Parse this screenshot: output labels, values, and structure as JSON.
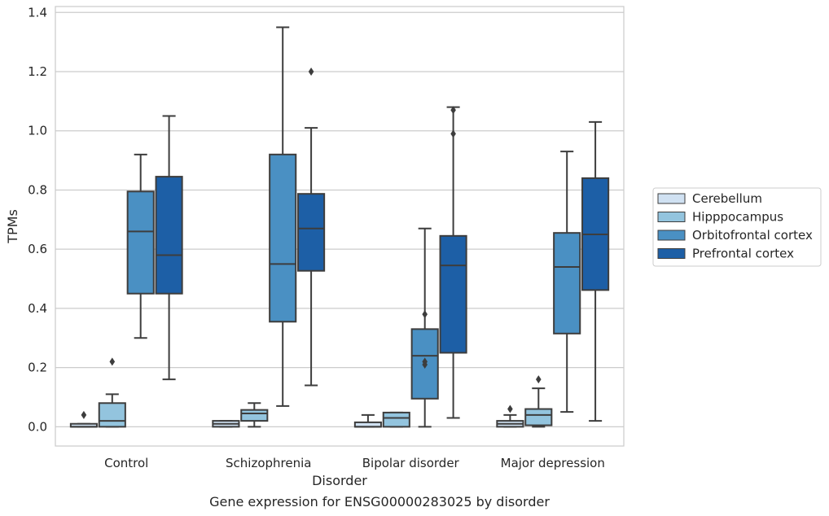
{
  "chart_data": {
    "type": "box",
    "title": "",
    "caption": "Gene expression for ENSG00000283025 by disorder",
    "xlabel": "Disorder",
    "ylabel": "TPMs",
    "ylim": [
      -0.065,
      1.42
    ],
    "yticks": [
      0.0,
      0.2,
      0.4,
      0.6,
      0.8,
      1.0,
      1.2,
      1.4
    ],
    "ytick_labels": [
      "0.0",
      "0.2",
      "0.4",
      "0.6",
      "0.8",
      "1.0",
      "1.2",
      "1.4"
    ],
    "grid": "horizontal",
    "legend_position": "right",
    "categories": [
      "Control",
      "Schizophrenia",
      "Bipolar disorder",
      "Major depression"
    ],
    "series": [
      {
        "name": "Cerebellum",
        "color": "#d0e1f2",
        "boxes": [
          {
            "whislo": 0.0,
            "q1": 0.0,
            "med": 0.0,
            "q3": 0.01,
            "whishi": 0.01,
            "fliers": [
              0.04
            ]
          },
          {
            "whislo": 0.0,
            "q1": 0.0,
            "med": 0.01,
            "q3": 0.02,
            "whishi": 0.02,
            "fliers": []
          },
          {
            "whislo": 0.0,
            "q1": 0.0,
            "med": 0.0,
            "q3": 0.015,
            "whishi": 0.04,
            "fliers": []
          },
          {
            "whislo": 0.0,
            "q1": 0.0,
            "med": 0.01,
            "q3": 0.02,
            "whishi": 0.04,
            "fliers": [
              0.06
            ]
          }
        ]
      },
      {
        "name": "Hipppocampus",
        "color": "#93c4de",
        "boxes": [
          {
            "whislo": 0.0,
            "q1": 0.0,
            "med": 0.02,
            "q3": 0.08,
            "whishi": 0.11,
            "fliers": [
              0.22
            ]
          },
          {
            "whislo": 0.0,
            "q1": 0.02,
            "med": 0.045,
            "q3": 0.057,
            "whishi": 0.08,
            "fliers": []
          },
          {
            "whislo": 0.0,
            "q1": 0.0,
            "med": 0.03,
            "q3": 0.048,
            "whishi": 0.048,
            "fliers": []
          },
          {
            "whislo": 0.0,
            "q1": 0.005,
            "med": 0.04,
            "q3": 0.06,
            "whishi": 0.13,
            "fliers": [
              0.16
            ]
          }
        ]
      },
      {
        "name": "Orbitofrontal cortex",
        "color": "#4a90c3",
        "boxes": [
          {
            "whislo": 0.3,
            "q1": 0.45,
            "med": 0.66,
            "q3": 0.795,
            "whishi": 0.92,
            "fliers": []
          },
          {
            "whislo": 0.07,
            "q1": 0.355,
            "med": 0.55,
            "q3": 0.92,
            "whishi": 1.35,
            "fliers": []
          },
          {
            "whislo": 0.0,
            "q1": 0.095,
            "med": 0.24,
            "q3": 0.33,
            "whishi": 0.67,
            "fliers": [
              0.21,
              0.22,
              0.38
            ]
          },
          {
            "whislo": 0.05,
            "q1": 0.315,
            "med": 0.54,
            "q3": 0.655,
            "whishi": 0.93,
            "fliers": []
          }
        ]
      },
      {
        "name": "Prefrontal cortex",
        "color": "#1d5fa6",
        "boxes": [
          {
            "whislo": 0.16,
            "q1": 0.45,
            "med": 0.58,
            "q3": 0.845,
            "whishi": 1.05,
            "fliers": []
          },
          {
            "whislo": 0.14,
            "q1": 0.527,
            "med": 0.67,
            "q3": 0.787,
            "whishi": 1.01,
            "fliers": [
              1.2
            ]
          },
          {
            "whislo": 0.03,
            "q1": 0.25,
            "med": 0.545,
            "q3": 0.645,
            "whishi": 1.08,
            "fliers": [
              0.99,
              1.07
            ]
          },
          {
            "whislo": 0.02,
            "q1": 0.462,
            "med": 0.65,
            "q3": 0.84,
            "whishi": 1.03,
            "fliers": []
          }
        ]
      }
    ]
  }
}
